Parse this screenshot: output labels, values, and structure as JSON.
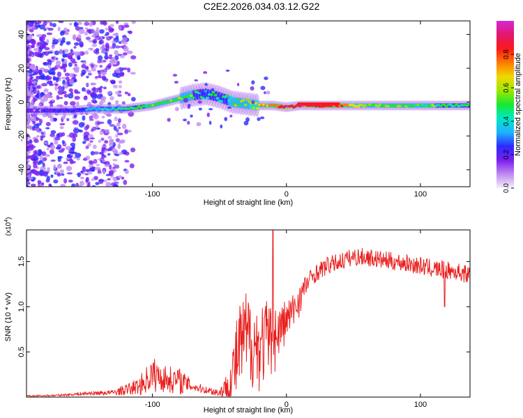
{
  "title": "C2E2.2026.034.03.12.G22",
  "top_panel": {
    "xlabel": "Height of straight line (km)",
    "ylabel": "Frequency (Hz)",
    "xlim": [
      -194,
      137
    ],
    "ylim": [
      -50,
      48
    ],
    "xticks": [
      -100,
      0,
      100
    ],
    "yticks": [
      -40,
      -20,
      0,
      20,
      40
    ]
  },
  "colorbar": {
    "label": "Normalized spectral amplitude",
    "ticks": [
      "0.0",
      "0.2",
      "0.4",
      "0.6",
      "0.8"
    ],
    "colors": [
      "#f6f0fb",
      "#c08bf0",
      "#7a1ef0",
      "#2b2bff",
      "#1fb2ff",
      "#00e8c8",
      "#18e830",
      "#9ee800",
      "#f0d800",
      "#ff7a00",
      "#ff1818",
      "#e0186e",
      "#d826d8"
    ]
  },
  "bottom_panel": {
    "xlabel": "Height of straight line (km)",
    "ylabel": "SNR (10 * v/v)",
    "scale_label": "(x10",
    "scale_exp": "4",
    "scale_close": ")",
    "xlim": [
      -194,
      137
    ],
    "ylim": [
      0,
      1.85
    ],
    "xticks": [
      -100,
      0,
      100
    ],
    "yticks": [
      "0.5",
      "1.0",
      "1.5"
    ],
    "line_color": "#e8201e"
  },
  "chart_data": [
    {
      "type": "heatmap",
      "title": "C2E2.2026.034.03.12.G22",
      "xlabel": "Height of straight line (km)",
      "ylabel": "Frequency (Hz)",
      "xlim": [
        -194,
        137
      ],
      "ylim": [
        -50,
        48
      ],
      "colorbar_label": "Normalized spectral amplitude",
      "colorbar_range": [
        0,
        1
      ],
      "ridge": {
        "x": [
          -194,
          -160,
          -140,
          -120,
          -100,
          -80,
          -70,
          -60,
          -50,
          -40,
          -30,
          -20,
          -10,
          0,
          10,
          40,
          60,
          100,
          137
        ],
        "freq": [
          -5,
          -5,
          -4,
          -4,
          -2,
          2,
          4,
          5,
          3,
          0,
          -1,
          -2,
          -2,
          -3,
          -2,
          -2,
          -2,
          -2,
          -2
        ],
        "amplitude": [
          0.15,
          0.2,
          0.35,
          0.45,
          0.5,
          0.55,
          0.5,
          0.4,
          0.45,
          0.5,
          0.6,
          0.7,
          0.75,
          0.95,
          0.95,
          0.8,
          0.55,
          0.5,
          0.45
        ]
      }
    },
    {
      "type": "line",
      "title": "",
      "xlabel": "Height of straight line (km)",
      "ylabel": "SNR (10 * v/v) (x10^4)",
      "xlim": [
        -194,
        137
      ],
      "ylim": [
        0,
        1.85
      ],
      "series": [
        {
          "name": "SNR",
          "x": [
            -194,
            -170,
            -150,
            -130,
            -120,
            -110,
            -100,
            -90,
            -80,
            -70,
            -60,
            -50,
            -45,
            -40,
            -35,
            -30,
            -25,
            -20,
            -15,
            -10,
            -5,
            0,
            5,
            10,
            15,
            20,
            25,
            30,
            40,
            50,
            60,
            70,
            80,
            90,
            100,
            110,
            120,
            130,
            137
          ],
          "y": [
            0.01,
            0.02,
            0.04,
            0.05,
            0.08,
            0.12,
            0.25,
            0.2,
            0.18,
            0.12,
            0.08,
            0.05,
            0.1,
            0.25,
            0.55,
            0.65,
            0.6,
            0.55,
            0.65,
            0.6,
            0.75,
            0.85,
            0.95,
            1.1,
            1.25,
            1.35,
            1.4,
            1.45,
            1.5,
            1.55,
            1.55,
            1.52,
            1.5,
            1.48,
            1.45,
            1.42,
            1.4,
            1.38,
            1.35
          ],
          "noise_amplitude": [
            0.01,
            0.01,
            0.02,
            0.03,
            0.06,
            0.1,
            0.2,
            0.15,
            0.15,
            0.06,
            0.04,
            0.05,
            0.15,
            0.4,
            0.5,
            0.55,
            0.5,
            0.5,
            0.45,
            0.4,
            0.3,
            0.25,
            0.2,
            0.2,
            0.12,
            0.1,
            0.1,
            0.1,
            0.1,
            0.1,
            0.1,
            0.1,
            0.1,
            0.1,
            0.1,
            0.1,
            0.1,
            0.1,
            0.1
          ]
        }
      ],
      "annotations": [
        "spike near -10 km reaching ~1.85",
        "dip near 118 km to ~1.0"
      ]
    }
  ]
}
